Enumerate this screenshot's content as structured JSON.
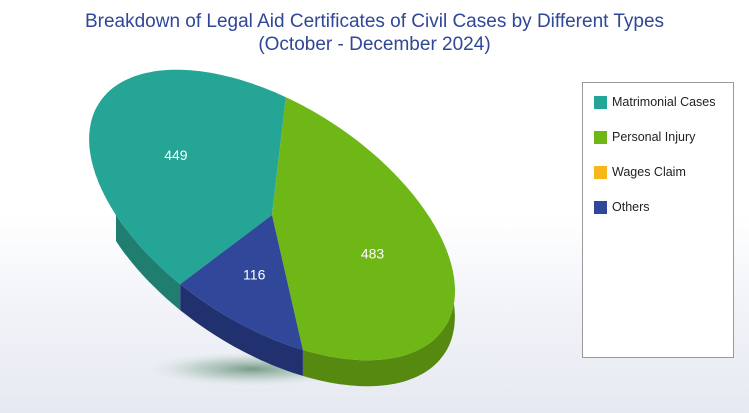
{
  "title": {
    "line1": "Breakdown of Legal Aid Certificates of Civil Cases by Different Types",
    "line2": "(October - December 2024)"
  },
  "chart_data": {
    "type": "pie",
    "style": "3d",
    "title": "Breakdown of Legal Aid Certificates of Civil Cases by Different Types (October - December 2024)",
    "categories": [
      "Matrimonial Cases",
      "Personal Injury",
      "Wages Claim",
      "Others"
    ],
    "values": [
      449,
      483,
      0,
      116
    ],
    "colors": [
      "#24a596",
      "#6fb617",
      "#f7b718",
      "#30479a"
    ],
    "side_colors": [
      "#1f7e70",
      "#55890f",
      "#c48f10",
      "#213170"
    ],
    "data_labels": [
      "449",
      "483",
      "",
      "116"
    ],
    "legend_position": "right"
  }
}
